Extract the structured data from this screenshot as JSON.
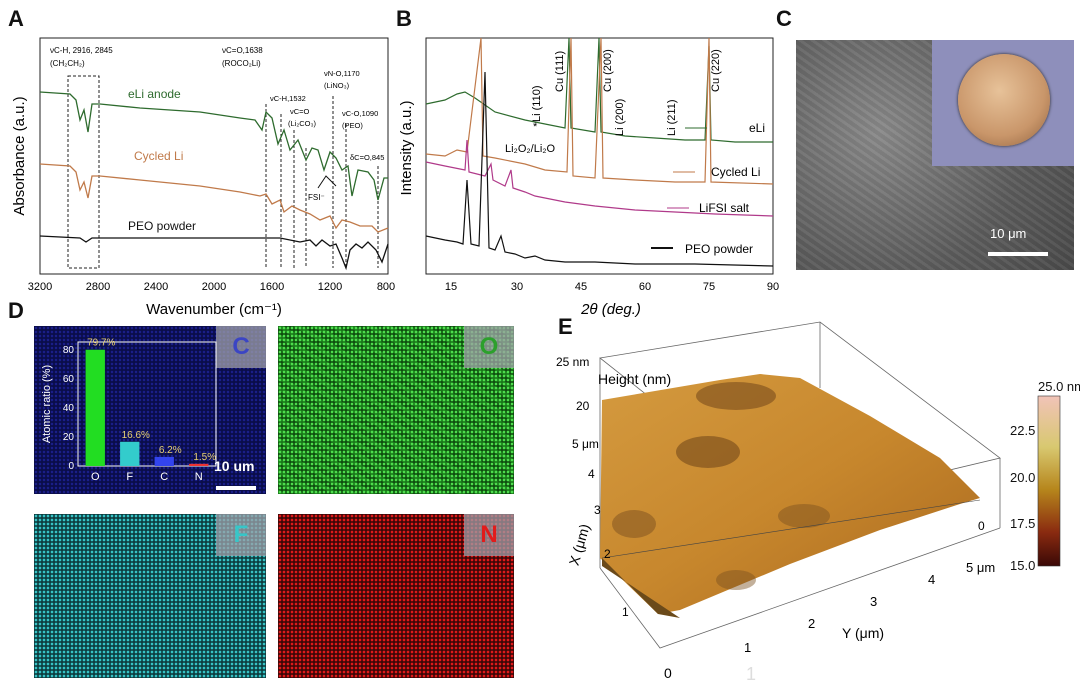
{
  "panel_labels": {
    "a": "A",
    "b": "B",
    "c": "C",
    "d": "D",
    "e": "E"
  },
  "ftir": {
    "ylabel": "Absorbance (a.u.)",
    "xlabel": "Wavenumber (cm⁻¹)",
    "xticks": [
      "3200",
      "2800",
      "2400",
      "2000",
      "1600",
      "1200",
      "800"
    ],
    "traces": [
      {
        "name": "eLi anode",
        "color": "#2e6b2e"
      },
      {
        "name": "Cycled Li",
        "color": "#c07a4a"
      },
      {
        "name": "PEO powder",
        "color": "#111111"
      }
    ],
    "annotations": {
      "ch": "νC-H, 2916, 2845",
      "ch_group": "(CH₂CH₂)",
      "co": "νC=O,1638",
      "co_group": "(ROCO₂Li)",
      "ch2": "νC-H,1532",
      "co2": "νC=O",
      "co2_group": "(Li₂CO₃)",
      "no": "νN-O,1170",
      "no_group": "(LiNO₃)",
      "coc": "νC-O,1090",
      "coc_group": "(PEO)",
      "delta": "δC=O,845",
      "fsi": "FSI⁻"
    }
  },
  "xrd": {
    "ylabel": "Intensity (a.u.)",
    "xlabel": "2θ (deg.)",
    "xticks": [
      "15",
      "30",
      "45",
      "60",
      "75",
      "90"
    ],
    "legend": [
      "eLi",
      "Cycled Li",
      "LiFSI salt",
      "PEO powder"
    ],
    "peaks": [
      "Li (110)",
      "Cu (111)",
      "Cu (200)",
      "Li (200)",
      "Li (211)",
      "Cu (220)"
    ],
    "li2o": "Li₂O₂/Li₂O",
    "star": "*"
  },
  "sem": {
    "scalebar": "10 μm"
  },
  "edx": {
    "maps": [
      {
        "element": "C",
        "color": "#3b45c4"
      },
      {
        "element": "O",
        "color": "#2ca02c"
      },
      {
        "element": "F",
        "color": "#37c6c8"
      },
      {
        "element": "N",
        "color": "#e21b1b"
      }
    ],
    "scalebar": "10 um",
    "inset": {
      "ylabel": "Atomic ratio (%)",
      "categories": [
        "O",
        "F",
        "C",
        "N"
      ],
      "values": [
        79.7,
        16.6,
        6.2,
        1.5
      ],
      "labels": [
        "79.7%",
        "16.6%",
        "6.2%",
        "1.5%"
      ],
      "colors": [
        "#22dd22",
        "#33cccc",
        "#3344ee",
        "#ee3333"
      ],
      "yticks": [
        "0",
        "20",
        "40",
        "60",
        "80"
      ]
    }
  },
  "afm": {
    "z_label": "Height (nm)",
    "top_label": "25 nm",
    "z_ticks": [
      "20",
      "5 μm",
      "4",
      "3",
      "2",
      "1"
    ],
    "xaxis_label": "X (μm)",
    "yaxis_label": "Y (μm)",
    "y_ticks": [
      "1",
      "2",
      "3",
      "4",
      "5 μm"
    ],
    "zero_a": "0",
    "zero_b": "0",
    "ghost": "1",
    "colorbar_ticks": [
      "25.0 nm",
      "22.5",
      "20.0",
      "17.5",
      "15.0"
    ]
  }
}
